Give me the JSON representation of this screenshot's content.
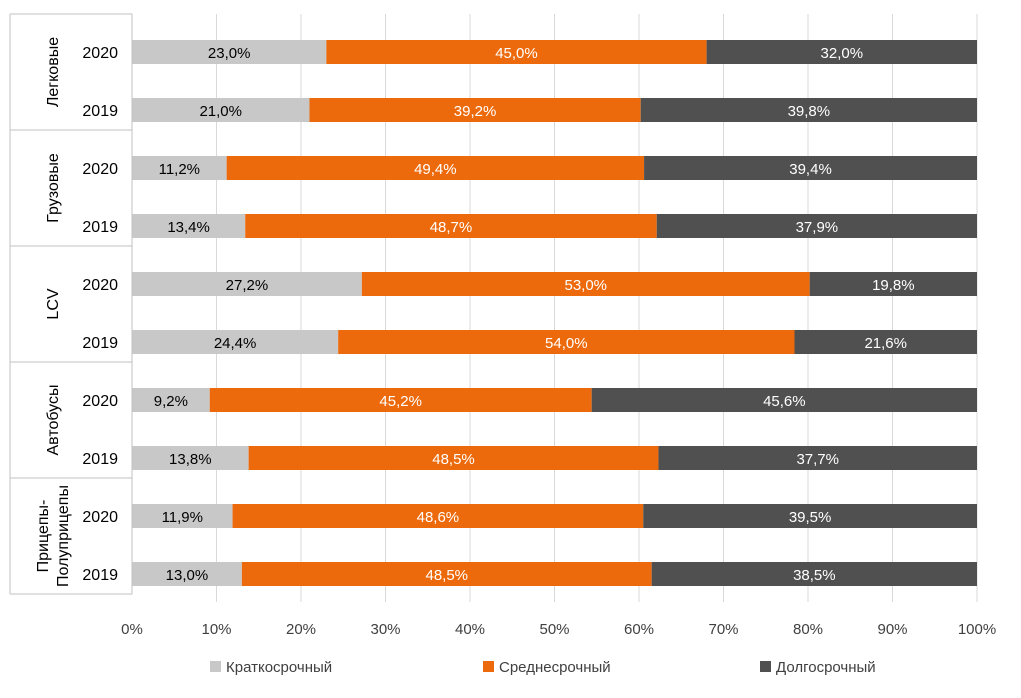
{
  "chart_data": {
    "type": "bar",
    "orientation": "horizontal",
    "stacked": "percent",
    "groups": [
      {
        "label": "Легковые",
        "rows": [
          {
            "year": "2020",
            "values": [
              23.0,
              45.0,
              32.0
            ],
            "labels": [
              "23,0%",
              "45,0%",
              "32,0%"
            ]
          },
          {
            "year": "2019",
            "values": [
              21.0,
              39.2,
              39.8
            ],
            "labels": [
              "21,0%",
              "39,2%",
              "39,8%"
            ]
          }
        ]
      },
      {
        "label": "Грузовые",
        "rows": [
          {
            "year": "2020",
            "values": [
              11.2,
              49.4,
              39.4
            ],
            "labels": [
              "11,2%",
              "49,4%",
              "39,4%"
            ]
          },
          {
            "year": "2019",
            "values": [
              13.4,
              48.7,
              37.9
            ],
            "labels": [
              "13,4%",
              "48,7%",
              "37,9%"
            ]
          }
        ]
      },
      {
        "label": "LCV",
        "rows": [
          {
            "year": "2020",
            "values": [
              27.2,
              53.0,
              19.8
            ],
            "labels": [
              "27,2%",
              "53,0%",
              "19,8%"
            ]
          },
          {
            "year": "2019",
            "values": [
              24.4,
              54.0,
              21.6
            ],
            "labels": [
              "24,4%",
              "54,0%",
              "21,6%"
            ]
          }
        ]
      },
      {
        "label": "Автобусы",
        "rows": [
          {
            "year": "2020",
            "values": [
              9.2,
              45.2,
              45.6
            ],
            "labels": [
              "9,2%",
              "45,2%",
              "45,6%"
            ]
          },
          {
            "year": "2019",
            "values": [
              13.8,
              48.5,
              37.7
            ],
            "labels": [
              "13,8%",
              "48,5%",
              "37,7%"
            ]
          }
        ]
      },
      {
        "label": [
          "Прицепы-",
          "Полуприцепы"
        ],
        "rows": [
          {
            "year": "2020",
            "values": [
              11.9,
              48.6,
              39.5
            ],
            "labels": [
              "11,9%",
              "48,6%",
              "39,5%"
            ]
          },
          {
            "year": "2019",
            "values": [
              13.0,
              48.5,
              38.5
            ],
            "labels": [
              "13,0%",
              "48,5%",
              "38,5%"
            ]
          }
        ]
      }
    ],
    "series": [
      {
        "name": "Краткосрочный",
        "color": "#c8c8c8",
        "label_color": "#000000"
      },
      {
        "name": "Среднесрочный",
        "color": "#ed6a0c",
        "label_color": "#ffffff"
      },
      {
        "name": "Долгосрочный",
        "color": "#505050",
        "label_color": "#ffffff"
      }
    ],
    "x_ticks": [
      "0%",
      "10%",
      "20%",
      "30%",
      "40%",
      "50%",
      "60%",
      "70%",
      "80%",
      "90%",
      "100%"
    ],
    "xlim": [
      0,
      100
    ],
    "legend_position": "bottom",
    "grid": true
  }
}
